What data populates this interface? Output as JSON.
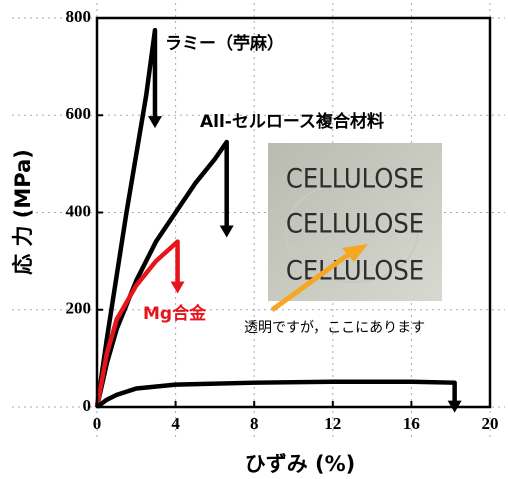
{
  "chart_data": {
    "type": "line",
    "xlabel": "ひずみ (%)",
    "ylabel": "応 力 (MPa)",
    "xlim": [
      0,
      20
    ],
    "xticks": [
      0,
      4,
      8,
      12,
      16,
      20
    ],
    "ylim": [
      0,
      800
    ],
    "yticks": [
      0,
      200,
      400,
      600,
      800
    ],
    "grid": true,
    "series": [
      {
        "name": "ラミー（苧麻）",
        "color": "#000000",
        "x": [
          0,
          0.5,
          1,
          1.5,
          2,
          2.5,
          2.95,
          2.95
        ],
        "values": [
          0,
          140,
          270,
          400,
          520,
          640,
          775,
          590
        ]
      },
      {
        "name": "All-セルロース複合材料",
        "color": "#000000",
        "x": [
          0,
          0.5,
          1,
          2,
          3,
          4,
          5,
          6,
          6.6,
          6.6
        ],
        "values": [
          0,
          90,
          160,
          260,
          340,
          400,
          460,
          510,
          545,
          365
        ]
      },
      {
        "name": "Mg合金",
        "color": "#e8141b",
        "x": [
          0,
          0.5,
          1,
          2,
          3,
          4.1,
          4.1
        ],
        "values": [
          0,
          110,
          180,
          250,
          300,
          340,
          250
        ]
      },
      {
        "color": "#000000",
        "x": [
          0,
          0.5,
          1,
          2,
          4,
          8,
          12,
          16,
          18.2,
          18.2
        ],
        "values": [
          0,
          15,
          25,
          38,
          46,
          50,
          52,
          52,
          50,
          5
        ]
      }
    ],
    "inset": {
      "lines": [
        "CELLULOSE",
        "CELLULOSE",
        "CELLULOSE"
      ]
    },
    "annotation": "透明ですが，ここにあります"
  }
}
